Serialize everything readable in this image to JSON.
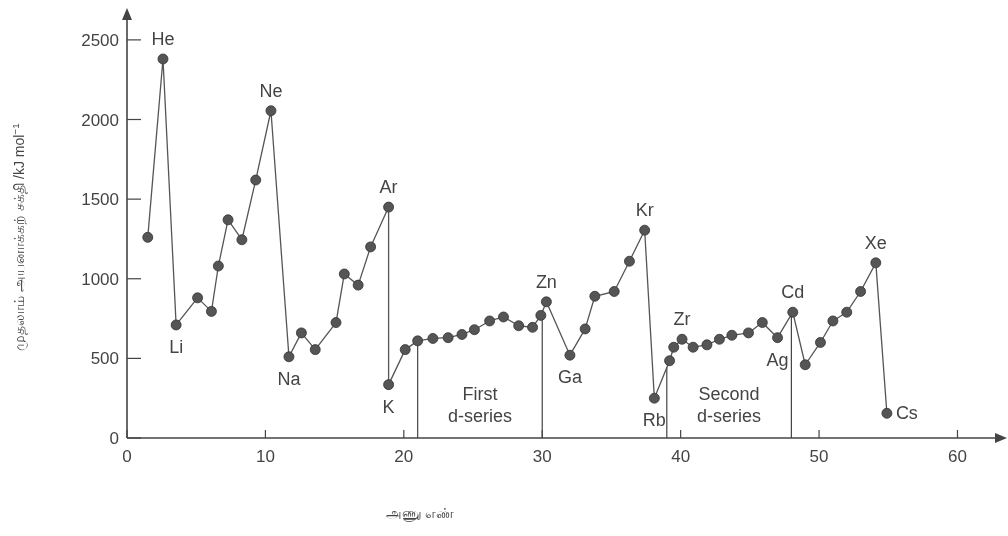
{
  "chart_data": {
    "type": "line",
    "xlabel": "அணு எண்",
    "ylabel": "முதலாம் அயனாக்கற் சக்தி /kJ mol$^{−1}$",
    "xlim": [
      0,
      63
    ],
    "ylim": [
      0,
      2650
    ],
    "xticks": [
      0,
      10,
      20,
      30,
      40,
      50,
      60
    ],
    "yticks": [
      0,
      500,
      1000,
      1500,
      2000,
      2500
    ],
    "marker": "circle",
    "line_style": "solid",
    "series": [
      {
        "color": "#555555",
        "x": [
          1.5,
          2.6,
          3.55,
          5.1,
          6.1,
          6.6,
          7.3,
          8.3,
          9.3,
          10.4,
          11.7,
          12.6,
          13.6,
          15.1,
          15.7,
          16.7,
          17.6,
          18.9,
          18.9,
          20.1,
          21.0,
          22.1,
          23.2,
          24.2,
          25.1,
          26.2,
          27.2,
          28.3,
          29.3,
          29.9,
          30.3,
          32.0,
          33.1,
          33.8,
          35.2,
          36.3,
          37.4,
          38.1,
          39.2,
          39.5,
          40.1,
          40.9,
          41.9,
          42.8,
          43.7,
          44.9,
          45.9,
          47.0,
          48.1,
          49.0,
          50.1,
          51.0,
          52.0,
          53.0,
          54.1,
          54.9
        ],
        "values": [
          1260,
          2380,
          710,
          880,
          795,
          1080,
          1370,
          1245,
          1620,
          2055,
          510,
          660,
          555,
          725,
          1030,
          960,
          1200,
          1450,
          335,
          555,
          610,
          625,
          630,
          650,
          680,
          735,
          760,
          705,
          695,
          770,
          855,
          520,
          685,
          890,
          920,
          1110,
          1305,
          250,
          485,
          570,
          620,
          570,
          585,
          620,
          645,
          660,
          725,
          630,
          790,
          460,
          600,
          735,
          790,
          920,
          1100,
          155
        ]
      }
    ],
    "annotations": [
      {
        "text": "He",
        "x": 2.6,
        "y": 2380
      },
      {
        "text": "Li",
        "x": 3.55,
        "y": 710
      },
      {
        "text": "Ne",
        "x": 10.4,
        "y": 2055
      },
      {
        "text": "Na",
        "x": 11.7,
        "y": 510
      },
      {
        "text": "Ar",
        "x": 18.9,
        "y": 1450
      },
      {
        "text": "K",
        "x": 18.9,
        "y": 335
      },
      {
        "text": "Zn",
        "x": 30.3,
        "y": 855
      },
      {
        "text": "Ga",
        "x": 32.0,
        "y": 520
      },
      {
        "text": "Kr",
        "x": 37.4,
        "y": 1305
      },
      {
        "text": "Rb",
        "x": 38.1,
        "y": 250
      },
      {
        "text": "Zr",
        "x": 40.1,
        "y": 620
      },
      {
        "text": "Ag",
        "x": 47.0,
        "y": 630
      },
      {
        "text": "Cd",
        "x": 48.1,
        "y": 790
      },
      {
        "text": "Xe",
        "x": 54.1,
        "y": 1100
      },
      {
        "text": "Cs",
        "x": 54.9,
        "y": 155
      },
      "First d-series",
      "Second d-series"
    ],
    "ref_lines": [
      {
        "axis": "x",
        "value": 21
      },
      {
        "axis": "x",
        "value": 30
      },
      {
        "axis": "x",
        "value": 39
      },
      {
        "axis": "x",
        "value": 48
      }
    ]
  }
}
